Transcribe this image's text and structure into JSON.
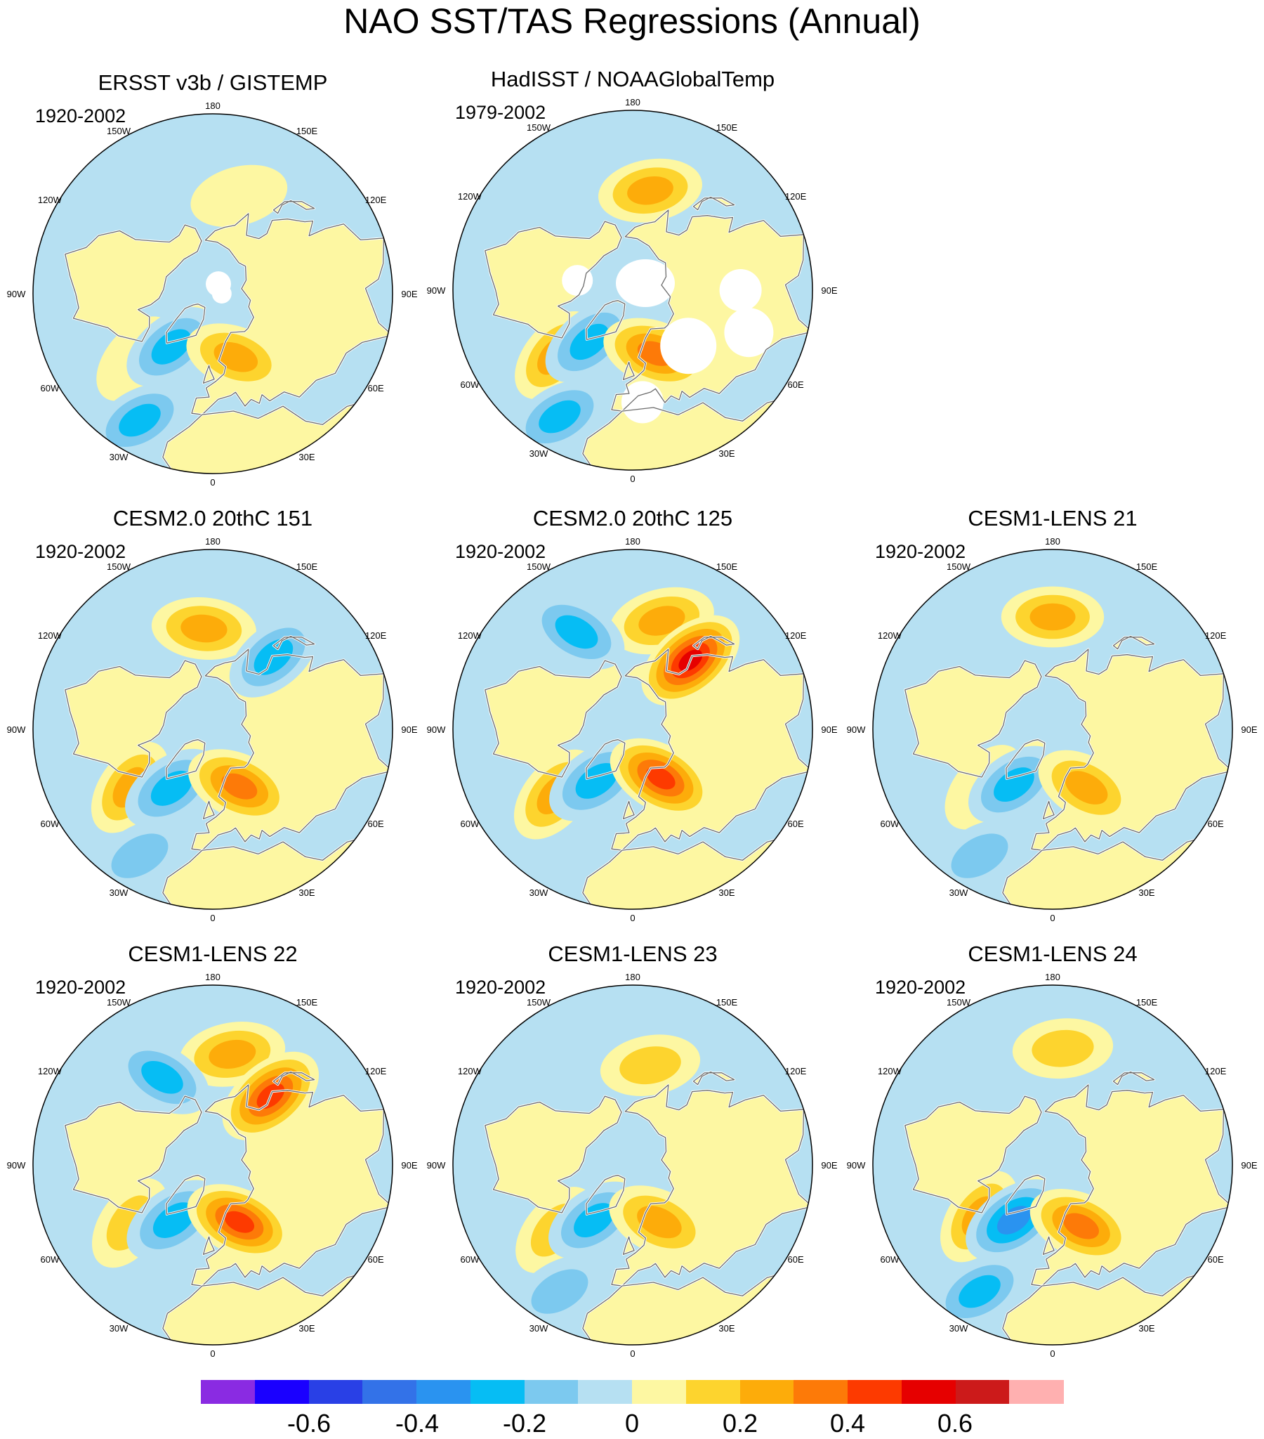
{
  "figure_title": "NAO SST/TAS Regressions (Annual)",
  "longitude_labels": [
    "180",
    "150E",
    "120E",
    "90E",
    "60E",
    "30E",
    "0",
    "30W",
    "60W",
    "90W",
    "120W",
    "150W"
  ],
  "panels": [
    {
      "title": "ERSST v3b / GISTEMP",
      "period": "1920-2002",
      "missing_data": "moderate",
      "features": [
        {
          "type": "blob",
          "lon": 165,
          "lat": 45,
          "value": 0.15
        },
        {
          "type": "blob",
          "lon": -50,
          "lat": 45,
          "value": 0.15
        },
        {
          "type": "blob",
          "lon": -38,
          "lat": 60,
          "value": -0.25
        },
        {
          "type": "blob",
          "lon": 20,
          "lat": 60,
          "value": 0.25
        },
        {
          "type": "blob",
          "lon": -30,
          "lat": 25,
          "value": -0.25
        }
      ]
    },
    {
      "title": "HadISST / NOAAGlobalTemp",
      "period": "1979-2002",
      "missing_data": "large",
      "features": [
        {
          "type": "blob",
          "lon": 170,
          "lat": 45,
          "value": 0.3
        },
        {
          "type": "blob",
          "lon": -50,
          "lat": 45,
          "value": 0.25
        },
        {
          "type": "blob",
          "lon": -40,
          "lat": 60,
          "value": -0.25
        },
        {
          "type": "blob",
          "lon": 20,
          "lat": 60,
          "value": 0.4
        },
        {
          "type": "blob",
          "lon": -30,
          "lat": 25,
          "value": -0.25
        }
      ]
    },
    {
      "title": "CESM2.0 20thC 151",
      "period": "1920-2002",
      "missing_data": "none",
      "features": [
        {
          "type": "blob",
          "lon": -175,
          "lat": 45,
          "value": 0.3
        },
        {
          "type": "blob",
          "lon": 140,
          "lat": 48,
          "value": -0.25
        },
        {
          "type": "blob",
          "lon": -55,
          "lat": 45,
          "value": 0.25
        },
        {
          "type": "blob",
          "lon": -35,
          "lat": 58,
          "value": -0.3
        },
        {
          "type": "blob",
          "lon": 25,
          "lat": 62,
          "value": 0.4
        },
        {
          "type": "blob",
          "lon": -30,
          "lat": 25,
          "value": -0.2
        }
      ]
    },
    {
      "title": "CESM2.0 20thC 125",
      "period": "1920-2002",
      "missing_data": "none",
      "features": [
        {
          "type": "blob",
          "lon": 165,
          "lat": 40,
          "value": 0.35
        },
        {
          "type": "blob",
          "lon": -150,
          "lat": 40,
          "value": -0.3
        },
        {
          "type": "blob",
          "lon": 140,
          "lat": 50,
          "value": 0.55
        },
        {
          "type": "blob",
          "lon": -50,
          "lat": 45,
          "value": 0.3
        },
        {
          "type": "blob",
          "lon": -35,
          "lat": 62,
          "value": -0.35
        },
        {
          "type": "blob",
          "lon": 30,
          "lat": 65,
          "value": 0.45
        }
      ]
    },
    {
      "title": "CESM1-LENS 21",
      "period": "1920-2002",
      "missing_data": "none",
      "features": [
        {
          "type": "blob",
          "lon": 180,
          "lat": 40,
          "value": 0.25
        },
        {
          "type": "blob",
          "lon": -50,
          "lat": 50,
          "value": 0.15
        },
        {
          "type": "blob",
          "lon": -35,
          "lat": 60,
          "value": -0.25
        },
        {
          "type": "blob",
          "lon": 30,
          "lat": 60,
          "value": 0.3
        },
        {
          "type": "blob",
          "lon": -30,
          "lat": 25,
          "value": -0.2
        }
      ]
    },
    {
      "title": "CESM1-LENS 22",
      "period": "1920-2002",
      "missing_data": "none",
      "features": [
        {
          "type": "blob",
          "lon": 170,
          "lat": 40,
          "value": 0.35
        },
        {
          "type": "blob",
          "lon": -150,
          "lat": 45,
          "value": -0.25
        },
        {
          "type": "blob",
          "lon": 140,
          "lat": 50,
          "value": 0.5
        },
        {
          "type": "blob",
          "lon": -55,
          "lat": 45,
          "value": 0.2
        },
        {
          "type": "blob",
          "lon": -35,
          "lat": 60,
          "value": -0.35
        },
        {
          "type": "blob",
          "lon": 25,
          "lat": 62,
          "value": 0.45
        }
      ]
    },
    {
      "title": "CESM1-LENS 23",
      "period": "1920-2002",
      "missing_data": "none",
      "features": [
        {
          "type": "blob",
          "lon": 170,
          "lat": 45,
          "value": 0.2
        },
        {
          "type": "blob",
          "lon": -50,
          "lat": 45,
          "value": 0.2
        },
        {
          "type": "blob",
          "lon": -35,
          "lat": 60,
          "value": -0.25
        },
        {
          "type": "blob",
          "lon": 25,
          "lat": 62,
          "value": 0.35
        },
        {
          "type": "blob",
          "lon": -30,
          "lat": 25,
          "value": -0.2
        }
      ]
    },
    {
      "title": "CESM1-LENS 24",
      "period": "1920-2002",
      "missing_data": "none",
      "features": [
        {
          "type": "blob",
          "lon": 175,
          "lat": 38,
          "value": 0.2
        },
        {
          "type": "blob",
          "lon": -55,
          "lat": 50,
          "value": 0.25
        },
        {
          "type": "blob",
          "lon": -35,
          "lat": 60,
          "value": -0.4
        },
        {
          "type": "blob",
          "lon": 25,
          "lat": 60,
          "value": 0.4
        },
        {
          "type": "blob",
          "lon": -30,
          "lat": 25,
          "value": -0.25
        }
      ]
    }
  ],
  "colorbar": {
    "colors": [
      "#8a2be2",
      "#1a00ff",
      "#2940e6",
      "#3372e8",
      "#2a93f0",
      "#06bdf4",
      "#7cc9ef",
      "#b6e0f2",
      "#fdf7a2",
      "#fdd42e",
      "#fdac0a",
      "#fd7a08",
      "#fd3a00",
      "#e60000",
      "#cc1a1a",
      "#ffb0b0"
    ],
    "tick_labels": [
      "-0.6",
      "-0.4",
      "-0.2",
      "0",
      "0.2",
      "0.4",
      "0.6"
    ],
    "land_outline_color": "#6b6b6b",
    "missing_color": "#ffffff"
  }
}
